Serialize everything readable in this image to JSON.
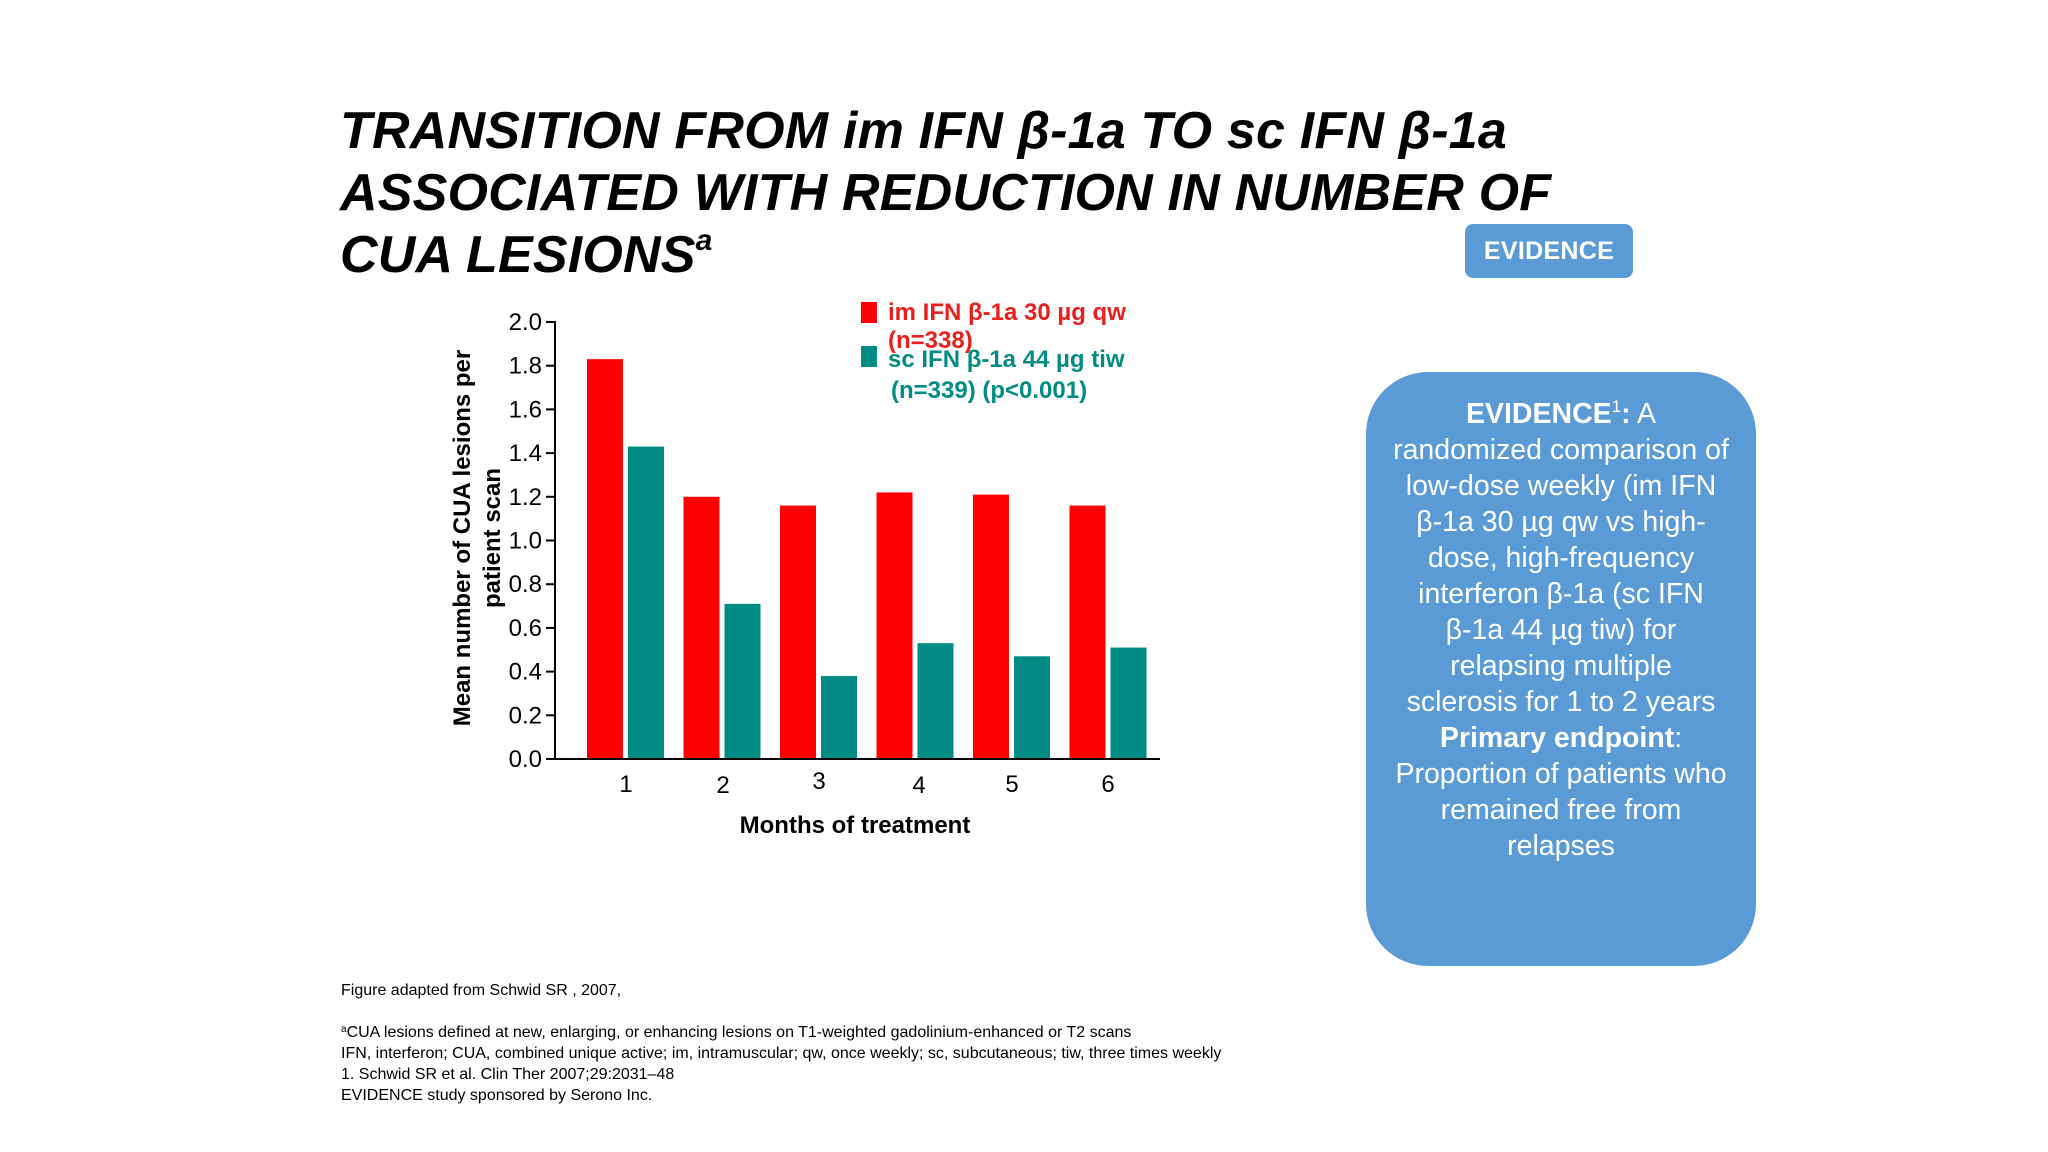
{
  "slide": {
    "title_line1": "TRANSITION FROM im IFN β-1a TO sc IFN β-1a",
    "title_line2": "ASSOCIATED WITH REDUCTION IN NUMBER OF",
    "title_line3": "CUA LESIONS",
    "title_superscript": "a",
    "tag_label": "EVIDENCE"
  },
  "panel": {
    "heading": "EVIDENCE",
    "heading_superscript": "1",
    "heading_colon": ":",
    "description": "A randomized comparison of low-dose weekly (im IFN β-1a 30 µg qw vs high-dose, high-frequency interferon β-1a (sc IFN β-1a 44 µg tiw) for relapsing multiple sclerosis for 1 to 2 years",
    "endpoint_label": "Primary endpoint",
    "endpoint_colon": ":",
    "endpoint_text": "Proportion of patients who remained free from relapses"
  },
  "chart_data": {
    "type": "bar",
    "title": "",
    "xlabel": "Months of treatment",
    "ylabel_line1": "Mean number of CUA lesions per",
    "ylabel_line2": "patient scan",
    "categories": [
      "1",
      "2",
      "3",
      "4",
      "5",
      "6"
    ],
    "ylim": [
      0,
      2.0
    ],
    "yticks": [
      "0.0",
      "0.2",
      "0.4",
      "0.6",
      "0.8",
      "1.0",
      "1.2",
      "1.4",
      "1.6",
      "1.8",
      "2.0"
    ],
    "grid": false,
    "legend_position": "top-right",
    "series": [
      {
        "name": "im IFN β-1a 30 µg qw",
        "name_line2": "(n=338)",
        "color": "#ff0000",
        "values": [
          1.83,
          1.2,
          1.16,
          1.22,
          1.21,
          1.16
        ]
      },
      {
        "name": "sc IFN β-1a 44 µg tiw",
        "name_line2": "(n=339) (p<0.001)",
        "color": "#008c84",
        "values": [
          1.43,
          0.71,
          0.38,
          0.53,
          0.47,
          0.51
        ]
      }
    ]
  },
  "footer": {
    "source": "Figure adapted from Schwid SR , 2007,",
    "note_marker": "a",
    "note": "CUA lesions defined at new, enlarging, or enhancing lesions on T1-weighted gadolinium-enhanced or T2 scans",
    "abbreviations": "IFN, interferon; CUA, combined unique active;  im, intramuscular; qw, once weekly; sc, subcutaneous; tiw, three times weekly",
    "reference": "1. Schwid SR et al. Clin Ther 2007;29:2031–48",
    "sponsor": "EVIDENCE study sponsored by Serono Inc."
  }
}
